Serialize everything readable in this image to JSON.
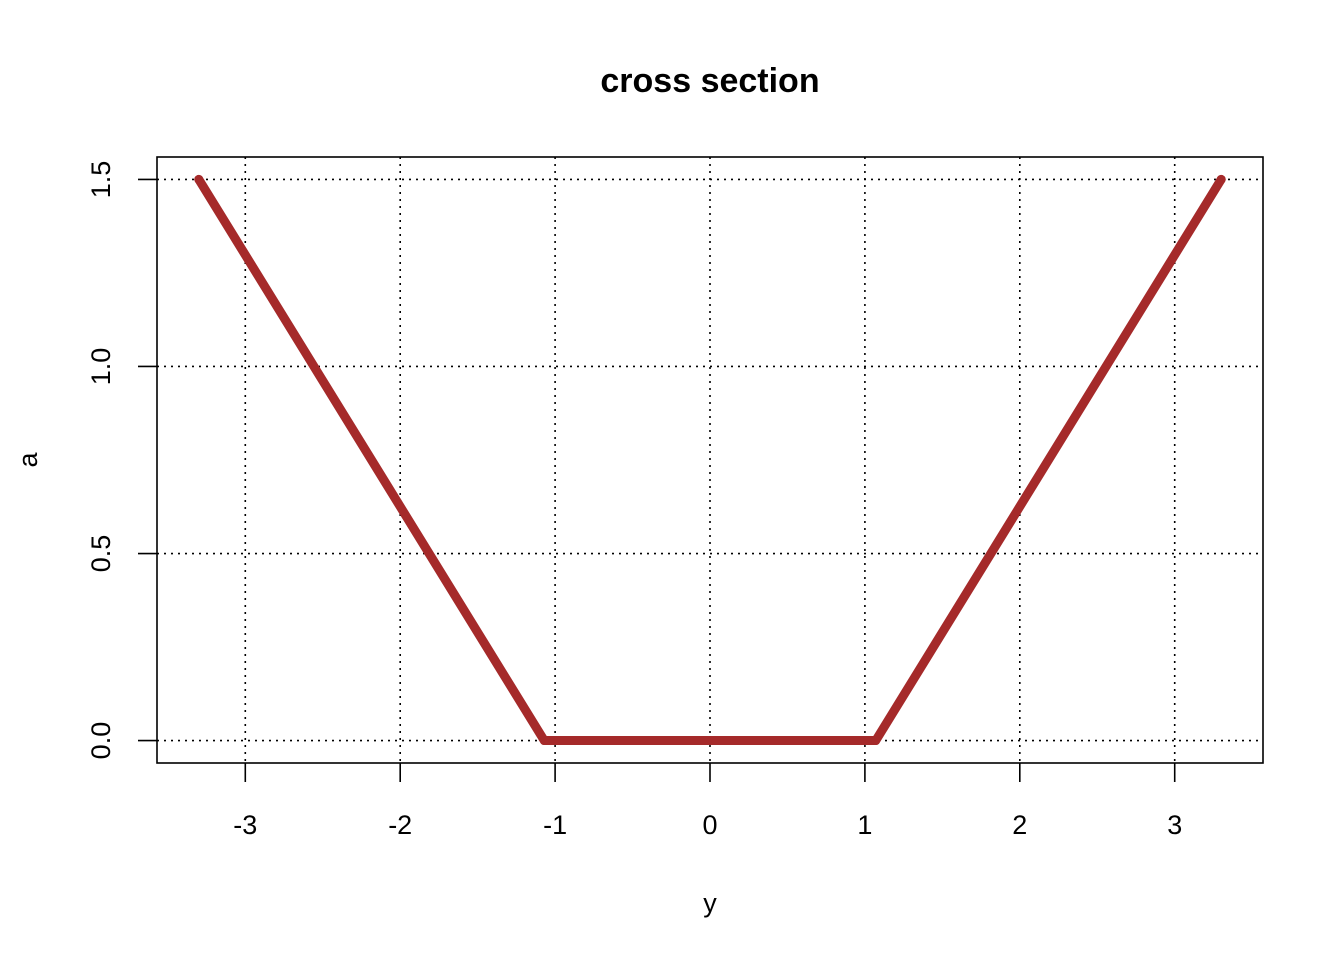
{
  "chart_data": {
    "type": "line",
    "title": "cross section",
    "xlabel": "y",
    "ylabel": "a",
    "xlim": [
      -3.57,
      3.57
    ],
    "ylim": [
      -0.06,
      1.56
    ],
    "xticks": [
      -3,
      -2,
      -1,
      0,
      1,
      2,
      3
    ],
    "xtick_labels": [
      "-3",
      "-2",
      "-1",
      "0",
      "1",
      "2",
      "3"
    ],
    "yticks": [
      0.0,
      0.5,
      1.0,
      1.5
    ],
    "ytick_labels": [
      "0.0",
      "0.5",
      "1.0",
      "1.5"
    ],
    "grid": true,
    "series": [
      {
        "color": "#a52a2a",
        "x": [
          -3.3,
          -1.07,
          1.07,
          3.3
        ],
        "y": [
          1.5,
          0.0,
          0.0,
          1.5
        ]
      }
    ]
  }
}
